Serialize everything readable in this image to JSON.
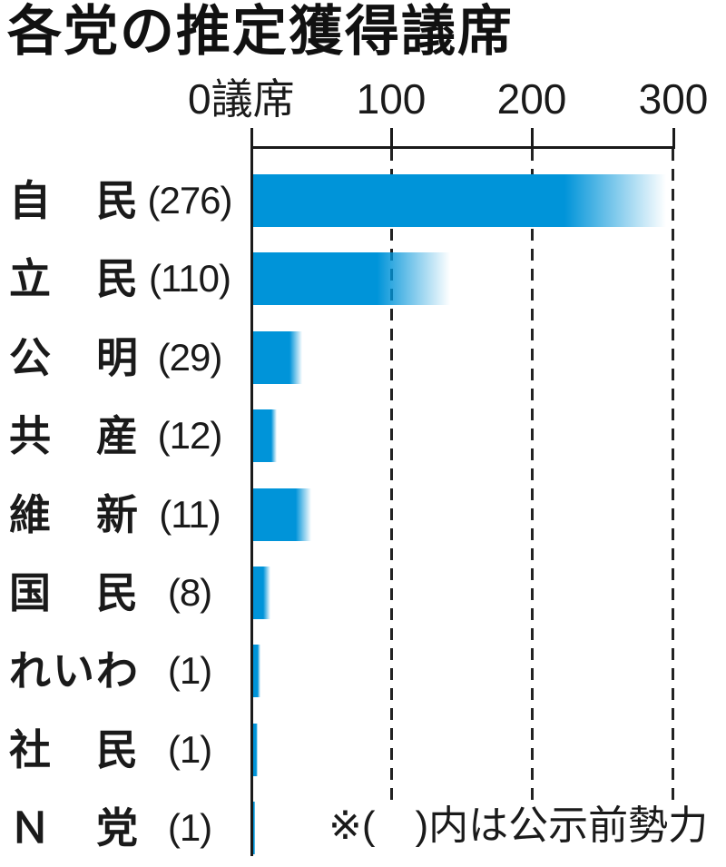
{
  "title": "各党の推定獲得議席",
  "note": "※(　)内は公示前勢力",
  "colors": {
    "bar_blue": "#0094d9",
    "axis_black": "#1a1a1a"
  },
  "chart_data": {
    "type": "bar",
    "orientation": "horizontal",
    "title": "各党の推定獲得議席",
    "x_axis_unit": "議席",
    "axis_labels": [
      "0議席",
      "100",
      "200",
      "300"
    ],
    "axis_tick_values": [
      0,
      100,
      200,
      300
    ],
    "xlim": [
      0,
      300
    ],
    "grid": "dashed vertical lines at 100, 200, 300",
    "legend": "none",
    "note": "※(　)内は公示前勢力",
    "bar_style": "solid blue fading to white at right end (estimate range)",
    "series": [
      {
        "party": "自民",
        "seats_label": "(276)",
        "pre_election_seats": 276,
        "bar_solid_to": 221,
        "bar_fade_to": 293
      },
      {
        "party": "立民",
        "seats_label": "(110)",
        "pre_election_seats": 110,
        "bar_solid_to": 88,
        "bar_fade_to": 140
      },
      {
        "party": "公明",
        "seats_label": "(29)",
        "pre_election_seats": 29,
        "bar_solid_to": 26,
        "bar_fade_to": 35
      },
      {
        "party": "共産",
        "seats_label": "(12)",
        "pre_election_seats": 12,
        "bar_solid_to": 13,
        "bar_fade_to": 17
      },
      {
        "party": "維新",
        "seats_label": "(11)",
        "pre_election_seats": 11,
        "bar_solid_to": 30,
        "bar_fade_to": 41
      },
      {
        "party": "国民",
        "seats_label": "(8)",
        "pre_election_seats": 8,
        "bar_solid_to": 7,
        "bar_fade_to": 12
      },
      {
        "party": "れいわ",
        "seats_label": "(1)",
        "pre_election_seats": 1,
        "bar_solid_to": 3,
        "bar_fade_to": 5
      },
      {
        "party": "社民",
        "seats_label": "(1)",
        "pre_election_seats": 1,
        "bar_solid_to": 2,
        "bar_fade_to": 3
      },
      {
        "party": "Ｎ党",
        "seats_label": "(1)",
        "pre_election_seats": 1,
        "bar_solid_to": 1,
        "bar_fade_to": 1.5
      }
    ]
  }
}
